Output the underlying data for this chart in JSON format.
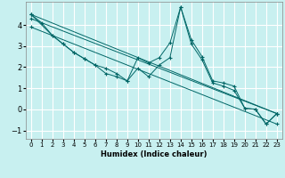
{
  "xlabel": "Humidex (Indice chaleur)",
  "line_color": "#006666",
  "bg_color": "#c8f0f0",
  "grid_color": "#ffffff",
  "xlim": [
    -0.5,
    23.5
  ],
  "ylim": [
    -1.4,
    5.1
  ],
  "xticks": [
    0,
    1,
    2,
    3,
    4,
    5,
    6,
    7,
    8,
    9,
    10,
    11,
    12,
    13,
    14,
    15,
    16,
    17,
    18,
    19,
    20,
    21,
    22,
    23
  ],
  "yticks": [
    -1,
    0,
    1,
    2,
    3,
    4
  ],
  "series": [
    {
      "x": [
        0,
        1,
        2,
        3,
        4,
        5,
        6,
        7,
        8,
        9,
        10,
        11,
        12,
        13,
        14,
        15,
        16,
        17,
        18,
        19,
        20,
        21,
        22,
        23
      ],
      "y": [
        4.5,
        4.1,
        3.5,
        3.1,
        2.7,
        2.4,
        2.1,
        1.7,
        1.55,
        1.35,
        2.45,
        2.2,
        2.45,
        3.15,
        4.85,
        3.3,
        2.5,
        1.35,
        1.25,
        1.1,
        0.05,
        0.0,
        -0.7,
        -0.2
      ]
    },
    {
      "x": [
        0,
        2,
        3,
        4,
        5,
        6,
        7,
        8,
        9,
        10,
        11,
        12,
        13,
        14,
        15,
        16,
        17,
        18,
        19,
        20,
        21,
        22,
        23
      ],
      "y": [
        4.5,
        3.5,
        3.1,
        2.7,
        2.4,
        2.1,
        1.95,
        1.7,
        1.35,
        1.95,
        1.55,
        2.1,
        2.45,
        4.85,
        3.1,
        2.35,
        1.25,
        1.1,
        0.9,
        0.05,
        0.0,
        -0.7,
        -0.2
      ]
    },
    {
      "x": [
        0,
        23
      ],
      "y": [
        4.5,
        -0.2
      ]
    },
    {
      "x": [
        0,
        23
      ],
      "y": [
        4.3,
        -0.2
      ]
    },
    {
      "x": [
        0,
        23
      ],
      "y": [
        3.9,
        -0.7
      ]
    }
  ]
}
